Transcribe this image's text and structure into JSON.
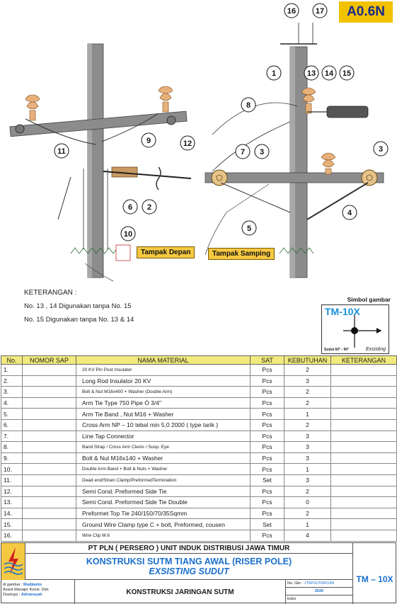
{
  "badge": "A0.6N",
  "drawing": {
    "callouts": [
      "16",
      "17",
      "1",
      "13",
      "14",
      "15",
      "8",
      "9",
      "12",
      "11",
      "7",
      "3",
      "3",
      "6",
      "2",
      "4",
      "10",
      "5"
    ],
    "view_front": "Tampak Depan",
    "view_side": "Tampak Samping"
  },
  "notes": {
    "heading": "KETERANGAN :",
    "line1": "No. 13 , 14 Digunakan tanpa No. 15",
    "line2": "No. 15 Digunakan tanpa No. 13 & 14"
  },
  "symbol": {
    "title": "Simbol gambar",
    "code": "TM-10X",
    "angle": "Sudut 60° - 90°",
    "status": "Exsisting"
  },
  "table": {
    "headers": [
      "No.",
      "NOMOR SAP",
      "NAMA MATERIAL",
      "SAT",
      "KEBUTUHAN",
      "KETERANGAN"
    ],
    "rows": [
      {
        "no": "1.",
        "sap": "",
        "name": "20 KV Pin Post Insulator",
        "unit": "Pcs",
        "qty": "2",
        "note": ""
      },
      {
        "no": "2.",
        "sap": "",
        "name": "Long Rod Insulator 20 KV",
        "unit": "Pcs",
        "qty": "3",
        "note": ""
      },
      {
        "no": "3.",
        "sap": "",
        "name": "Bolt & Nut M16x400 + Washer (Double Arm)",
        "unit": "Pcs",
        "qty": "2",
        "note": ""
      },
      {
        "no": "4.",
        "sap": "",
        "name": "Arm Tie Type 750 Pipe Ó 3/4\"",
        "unit": "Pcs",
        "qty": "2",
        "note": ""
      },
      {
        "no": "5.",
        "sap": "",
        "name": "Arm Tie Band , Nut M16 + Washer",
        "unit": "Pcs",
        "qty": "1",
        "note": ""
      },
      {
        "no": "6.",
        "sap": "",
        "name": "Cross Arm NP – 10 tebal min 5,0  2000 ( type tarik )",
        "unit": "Pcs",
        "qty": "2",
        "note": ""
      },
      {
        "no": "7.",
        "sap": "",
        "name": "Line Tap Connector",
        "unit": "Pcs",
        "qty": "3",
        "note": ""
      },
      {
        "no": "8.",
        "sap": "",
        "name": "Band Strap / Cross Arm Clevis / Susp. Eye",
        "unit": "Pcs",
        "qty": "3",
        "note": ""
      },
      {
        "no": "9.",
        "sap": "",
        "name": "Bolt & Nut M16x140 + Washer",
        "unit": "Pcs",
        "qty": "3",
        "note": ""
      },
      {
        "no": "10.",
        "sap": "",
        "name": "Double Arm Band + Bolt & Nuts + Washer",
        "unit": "Pcs",
        "qty": "1",
        "note": ""
      },
      {
        "no": "11.",
        "sap": "",
        "name": "Dead end/Strain Clamp/PreformedTermination",
        "unit": "Set",
        "qty": "3",
        "note": ""
      },
      {
        "no": "12.",
        "sap": "",
        "name": "Semi Cond. Preformed Side Tie",
        "unit": "Pcs",
        "qty": "2",
        "note": ""
      },
      {
        "no": "13.",
        "sap": "",
        "name": "Semi Cond. Preformed Side Tie Double",
        "unit": "Pcs",
        "qty": "0",
        "note": ""
      },
      {
        "no": "14.",
        "sap": "",
        "name": "Preformet Top Tie 240/150/70/35Sqmm",
        "unit": "Pcs",
        "qty": "2",
        "note": ""
      },
      {
        "no": "15.",
        "sap": "",
        "name": "Ground Wire Clamp type C + bolt, Preformed, cousen",
        "unit": "Set",
        "qty": "1",
        "note": ""
      },
      {
        "no": "16.",
        "sap": "",
        "name": "Wire Clip M.6",
        "unit": "Pcs",
        "qty": "4",
        "note": ""
      }
    ]
  },
  "title_block": {
    "company": "PT PLN ( PERSERO ) UNIT INDUK DISTRIBUSI JAWA TIMUR",
    "title1": "KONSTRUKSI SUTM TIANG AWAL (RISER POLE)",
    "title2": "EXSISTING SUDUT",
    "subtitle": "KONSTRUKSI JARINGAN SUTM",
    "drawn_label": "di gambar :",
    "drawn_by": "Mudjianto",
    "position": "Assist.Manajer Konst. Dist.",
    "approved_label": "Disetujui :",
    "approved_by": "Adriansyah",
    "drawing_no_label": "No. Gbr :",
    "drawing_no": "JTM/SUTM/019N",
    "year": "2020",
    "edition_label": "Edisi",
    "code": "TM – 10X"
  }
}
